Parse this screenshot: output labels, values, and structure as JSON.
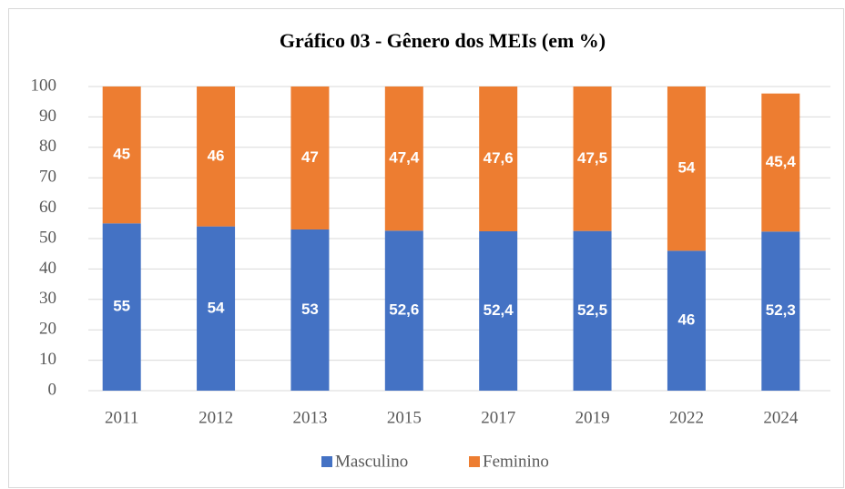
{
  "chart_data": {
    "type": "bar",
    "stacked": true,
    "title": "Gráfico 03 - Gênero dos MEIs (em %)",
    "categories": [
      "2011",
      "2012",
      "2013",
      "2015",
      "2017",
      "2019",
      "2022",
      "2024"
    ],
    "series": [
      {
        "name": "Masculino",
        "color": "#4472c4",
        "values": [
          55,
          54,
          53,
          52.6,
          52.4,
          52.5,
          46,
          52.3
        ],
        "value_labels": [
          "55",
          "54",
          "53",
          "52,6",
          "52,4",
          "52,5",
          "46",
          "52,3"
        ]
      },
      {
        "name": "Feminino",
        "color": "#ed7d31",
        "values": [
          45,
          46,
          47,
          47.4,
          47.6,
          47.5,
          54,
          45.4
        ],
        "value_labels": [
          "45",
          "46",
          "47",
          "47,4",
          "47,6",
          "47,5",
          "54",
          "45,4"
        ]
      }
    ],
    "ylim": [
      0,
      100
    ],
    "yticks": [
      0,
      10,
      20,
      30,
      40,
      50,
      60,
      70,
      80,
      90,
      100
    ],
    "grid": true,
    "legend": "bottom"
  }
}
